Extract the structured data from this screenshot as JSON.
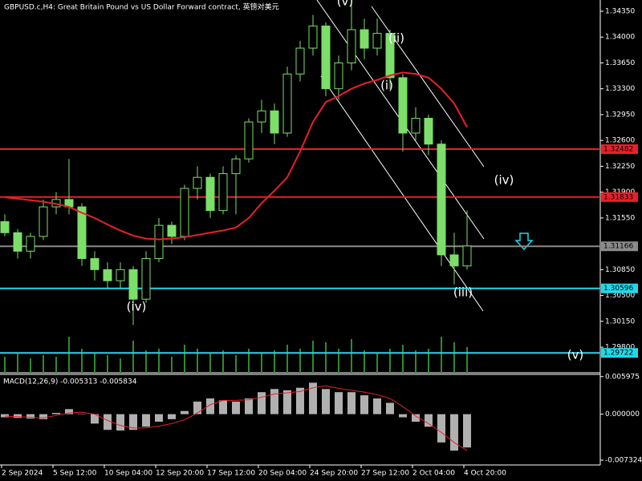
{
  "chart_data": {
    "type": "candlestick",
    "title": "GBPUSD.c,H4:  Great Britain Pound vs US Dollar Forward contract, 英镑对美元",
    "categories": [
      "2 Sep 2024",
      null,
      null,
      null,
      "5 Sep 12:00",
      null,
      null,
      null,
      "10 Sep 04:00",
      null,
      null,
      null,
      "12 Sep 20:00",
      null,
      null,
      null,
      "17 Sep 12:00",
      null,
      null,
      null,
      "20 Sep 04:00",
      null,
      null,
      null,
      "24 Sep 20:00",
      null,
      null,
      null,
      "27 Sep 12:00",
      null,
      null,
      null,
      "2 Oct 04:00",
      null,
      null,
      null,
      "4 Oct 20:00"
    ],
    "open": [
      1.315,
      1.3135,
      1.311,
      1.313,
      1.317,
      1.318,
      1.317,
      1.31,
      1.3085,
      1.307,
      1.3085,
      1.3045,
      1.31,
      1.3145,
      1.313,
      1.3195,
      1.321,
      1.3165,
      1.3215,
      1.3235,
      1.3285,
      1.33,
      1.327,
      1.335,
      1.3385,
      1.3415,
      1.333,
      1.3365,
      1.341,
      1.3385,
      1.3405,
      1.3345,
      1.327,
      1.329,
      1.3255,
      1.3105,
      1.309
    ],
    "high": [
      1.316,
      1.314,
      1.3135,
      1.318,
      1.319,
      1.3235,
      1.3175,
      1.311,
      1.3095,
      1.3095,
      1.309,
      1.311,
      1.3155,
      1.315,
      1.32,
      1.3225,
      1.3215,
      1.3225,
      1.324,
      1.329,
      1.3315,
      1.331,
      1.336,
      1.3395,
      1.343,
      1.342,
      1.3375,
      1.3445,
      1.3425,
      1.3425,
      1.341,
      1.335,
      1.3305,
      1.3295,
      1.326,
      1.3135,
      1.3165
    ],
    "low": [
      1.313,
      1.31,
      1.31,
      1.3125,
      1.316,
      1.316,
      1.309,
      1.307,
      1.306,
      1.306,
      1.301,
      1.304,
      1.3095,
      1.312,
      1.3125,
      1.318,
      1.3155,
      1.316,
      1.316,
      1.323,
      1.327,
      1.3255,
      1.3265,
      1.334,
      1.3375,
      1.332,
      1.3315,
      1.3355,
      1.337,
      1.3375,
      1.333,
      1.3245,
      1.326,
      1.324,
      1.309,
      1.3065,
      1.3085
    ],
    "close": [
      1.3135,
      1.311,
      1.313,
      1.317,
      1.318,
      1.317,
      1.31,
      1.3085,
      1.307,
      1.3085,
      1.3045,
      1.31,
      1.3145,
      1.313,
      1.3195,
      1.321,
      1.3165,
      1.3215,
      1.3235,
      1.3285,
      1.33,
      1.327,
      1.335,
      1.3385,
      1.3415,
      1.333,
      1.3365,
      1.341,
      1.3385,
      1.3405,
      1.3345,
      1.327,
      1.329,
      1.3255,
      1.3105,
      1.309,
      1.3117
    ],
    "candle_color": "#7dde6a",
    "moving_average": {
      "color": "#e8202a",
      "values": [
        1.3183,
        1.3181,
        1.3179,
        1.3177,
        1.3174,
        1.317,
        1.3162,
        1.3155,
        1.3146,
        1.3138,
        1.3131,
        1.3127,
        1.3126,
        1.3127,
        1.3129,
        1.3132,
        1.3135,
        1.3138,
        1.3142,
        1.3155,
        1.3175,
        1.3192,
        1.321,
        1.3245,
        1.3285,
        1.3312,
        1.332,
        1.333,
        1.3337,
        1.3342,
        1.3348,
        1.3352,
        1.335,
        1.3345,
        1.333,
        1.331,
        1.3278
      ]
    },
    "volume": {
      "color": "#2e8b2e",
      "values": [
        20,
        25,
        18,
        22,
        20,
        45,
        30,
        25,
        22,
        18,
        40,
        28,
        30,
        20,
        35,
        30,
        25,
        28,
        22,
        30,
        25,
        28,
        35,
        30,
        40,
        38,
        30,
        42,
        28,
        25,
        30,
        35,
        28,
        30,
        45,
        38,
        32
      ]
    },
    "ylim": [
      1.29453,
      1.34502
    ],
    "yticks": [
      {
        "value": 1.3435,
        "label": "1.34350"
      },
      {
        "value": 1.34,
        "label": "1.34000"
      },
      {
        "value": 1.3365,
        "label": "1.33650"
      },
      {
        "value": 1.333,
        "label": "1.33300"
      },
      {
        "value": 1.3295,
        "label": "1.32950"
      },
      {
        "value": 1.326,
        "label": "1.32600"
      },
      {
        "value": 1.3225,
        "label": "1.32250"
      },
      {
        "value": 1.319,
        "label": "1.31900"
      },
      {
        "value": 1.3155,
        "label": "1.31550"
      },
      {
        "value": 1.3085,
        "label": "1.30850"
      },
      {
        "value": 1.305,
        "label": "1.30500"
      },
      {
        "value": 1.3015,
        "label": "1.30150"
      },
      {
        "value": 1.298,
        "label": "1.29800"
      }
    ],
    "levels": [
      {
        "value": 1.32482,
        "color": "#e8202a"
      },
      {
        "value": 1.31833,
        "color": "#e8202a"
      },
      {
        "value": 1.31166,
        "color": "#8a8a8a"
      },
      {
        "value": 1.30596,
        "color": "#22d8e8"
      },
      {
        "value": 1.29722,
        "color": "#22d8e8"
      }
    ],
    "annotations": [
      "(iv)",
      "(v)",
      "(ii)",
      "(i)",
      "(iv)",
      "(iii)",
      "(v)"
    ],
    "macd": {
      "title": "MACD(12,26,9) -0.005313 -0.005834",
      "histogram_color": "#b0b0b0",
      "signal_color": "#e8202a",
      "histogram": [
        -0.0005,
        -0.0006,
        -0.0007,
        -0.0008,
        0.0002,
        0.0008,
        0,
        -0.0015,
        -0.0025,
        -0.0026,
        -0.0025,
        -0.002,
        -0.0012,
        -0.0008,
        0.0005,
        0.002,
        0.0025,
        0.0022,
        0.002,
        0.0025,
        0.0035,
        0.004,
        0.0038,
        0.0042,
        0.005,
        0.004,
        0.0035,
        0.0035,
        0.003,
        0.0025,
        0.0018,
        -0.0005,
        -0.0012,
        -0.002,
        -0.0045,
        -0.0058,
        -0.0053
      ],
      "signal": [
        -0.0003,
        -0.0004,
        -0.0005,
        -0.0006,
        -0.0002,
        0.0002,
        0.0003,
        0,
        -0.001,
        -0.0018,
        -0.0022,
        -0.0022,
        -0.0019,
        -0.0015,
        -0.0009,
        0.0002,
        0.0015,
        0.0022,
        0.0022,
        0.0023,
        0.0027,
        0.0032,
        0.0034,
        0.0036,
        0.0042,
        0.0045,
        0.0041,
        0.0038,
        0.0035,
        0.0031,
        0.0025,
        0.0012,
        -0.0003,
        -0.0015,
        -0.0029,
        -0.0045,
        -0.0058
      ],
      "ylim": [
        -0.0077,
        0.0062
      ],
      "yticks": [
        {
          "value": 0.005975,
          "label": "0.005975"
        },
        {
          "value": 0,
          "label": "0.000000"
        },
        {
          "value": -0.007324,
          "label": "-0.007324"
        }
      ]
    }
  }
}
